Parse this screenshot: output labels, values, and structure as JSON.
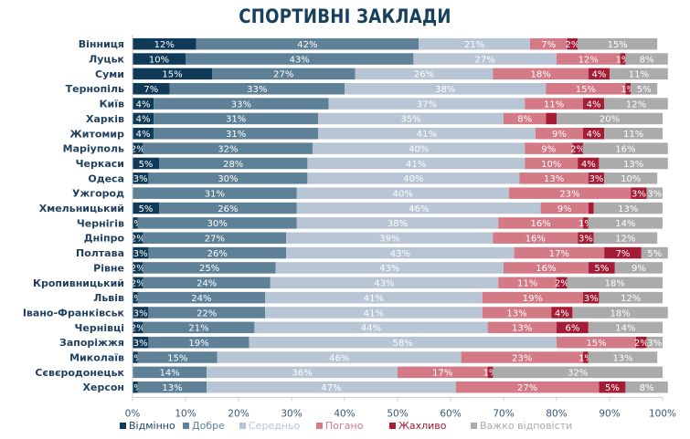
{
  "chart_data": {
    "type": "bar",
    "orientation": "horizontal",
    "stacked": "percent",
    "title": "СПОРТИВНІ ЗАКЛАДИ",
    "xlabel": "",
    "ylabel": "",
    "xlim": [
      0,
      100
    ],
    "x_ticks": [
      "0%",
      "10%",
      "20%",
      "30%",
      "40%",
      "50%",
      "60%",
      "70%",
      "80%",
      "90%",
      "100%"
    ],
    "grid": false,
    "legend_position": "bottom",
    "categories": [
      "Вінниця",
      "Луцьк",
      "Суми",
      "Тернопіль",
      "Київ",
      "Харків",
      "Житомир",
      "Маріуполь",
      "Черкаси",
      "Одеса",
      "Ужгород",
      "Хмельницький",
      "Чернігів",
      "Дніпро",
      "Полтава",
      "Рівне",
      "Кропивницький",
      "Львів",
      "Івано-Франківськ",
      "Чернівці",
      "Запоріжжя",
      "Миколаїв",
      "Сєвєродонецьк",
      "Херсон"
    ],
    "series": [
      {
        "name": "Відмінно",
        "color": "#0f3a58",
        "values": [
          12,
          10,
          15,
          7,
          4,
          4,
          4,
          2,
          5,
          3,
          0,
          5,
          1,
          2,
          3,
          2,
          2,
          1,
          3,
          2,
          3,
          1,
          0,
          1
        ]
      },
      {
        "name": "Добре",
        "color": "#5f8198",
        "values": [
          42,
          43,
          27,
          33,
          33,
          31,
          31,
          32,
          28,
          30,
          31,
          26,
          30,
          27,
          26,
          25,
          24,
          24,
          22,
          21,
          19,
          15,
          14,
          13
        ]
      },
      {
        "name": "Середньо",
        "color": "#b8c5d4",
        "values": [
          21,
          27,
          26,
          38,
          37,
          35,
          41,
          40,
          41,
          40,
          40,
          46,
          38,
          39,
          43,
          43,
          43,
          41,
          41,
          44,
          58,
          46,
          36,
          47
        ]
      },
      {
        "name": "Погано",
        "color": "#d47a86",
        "values": [
          7,
          12,
          18,
          15,
          11,
          8,
          9,
          9,
          10,
          13,
          23,
          9,
          16,
          16,
          17,
          16,
          11,
          19,
          13,
          13,
          15,
          23,
          17,
          27
        ]
      },
      {
        "name": "Жахливо",
        "color": "#a61c36",
        "values": [
          2,
          1,
          4,
          1,
          4,
          2,
          4,
          2,
          4,
          3,
          3,
          1,
          1,
          3,
          7,
          5,
          2,
          3,
          4,
          6,
          2,
          1,
          1,
          5
        ]
      },
      {
        "name": "Важко відповісти",
        "color": "#ababab",
        "values": [
          15,
          8,
          11,
          5,
          12,
          20,
          11,
          16,
          13,
          10,
          3,
          13,
          14,
          12,
          5,
          9,
          18,
          12,
          18,
          14,
          3,
          13,
          32,
          8
        ]
      }
    ],
    "label_hidden": {
      "Харків": [
        "Жахливо"
      ],
      "Хмельницький": [
        "Жахливо"
      ],
      "Ужгород": [
        "Відмінно"
      ],
      "Сєвєродонецьк": [
        "Відмінно"
      ]
    }
  },
  "legend_text_colors": [
    "#1f3f5e",
    "#5f8198",
    "#b8c5d4",
    "#d47a86",
    "#a61c36",
    "#ababab"
  ]
}
